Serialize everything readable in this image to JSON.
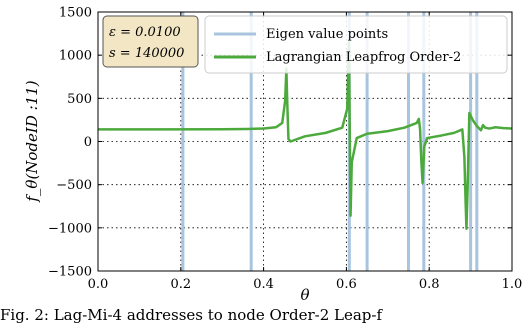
{
  "chart_data": {
    "type": "line",
    "ylabel": "f_θ(NodeID :11)",
    "xlabel": "θ",
    "xlim": [
      0.0,
      1.0
    ],
    "ylim": [
      -1500,
      1500
    ],
    "xticks": [
      0.0,
      0.2,
      0.4,
      0.6,
      0.8,
      1.0
    ],
    "xtick_labels": [
      "0.0",
      "0.2",
      "0.4",
      "0.6",
      "0.8",
      "1.0"
    ],
    "yticks": [
      -1500,
      -1000,
      -500,
      0,
      500,
      1000,
      1500
    ],
    "ytick_labels": [
      "−1500",
      "−1000",
      "−500",
      "0",
      "500",
      "1000",
      "1500"
    ],
    "grid": true,
    "legend_position": "top-right",
    "series": [
      {
        "name": "Eigen value points",
        "kind": "vertical-lines",
        "color": "#a8c4de",
        "x": [
          0.205,
          0.37,
          0.607,
          0.65,
          0.75,
          0.787,
          0.9,
          0.915
        ]
      },
      {
        "name": "Lagrangian Leapfrog Order-2",
        "kind": "line",
        "color": "#4caa3c",
        "points": [
          [
            0.0,
            140
          ],
          [
            0.15,
            140
          ],
          [
            0.3,
            142
          ],
          [
            0.36,
            145
          ],
          [
            0.4,
            150
          ],
          [
            0.43,
            165
          ],
          [
            0.445,
            215
          ],
          [
            0.452,
            470
          ],
          [
            0.455,
            845
          ],
          [
            0.457,
            470
          ],
          [
            0.46,
            30
          ],
          [
            0.465,
            0
          ],
          [
            0.5,
            60
          ],
          [
            0.55,
            100
          ],
          [
            0.59,
            160
          ],
          [
            0.602,
            380
          ],
          [
            0.606,
            1140
          ],
          [
            0.608,
            200
          ],
          [
            0.61,
            -860
          ],
          [
            0.613,
            -240
          ],
          [
            0.625,
            40
          ],
          [
            0.65,
            90
          ],
          [
            0.7,
            120
          ],
          [
            0.74,
            160
          ],
          [
            0.77,
            215
          ],
          [
            0.775,
            262
          ],
          [
            0.778,
            140
          ],
          [
            0.781,
            -230
          ],
          [
            0.784,
            -480
          ],
          [
            0.788,
            -60
          ],
          [
            0.795,
            40
          ],
          [
            0.83,
            70
          ],
          [
            0.86,
            100
          ],
          [
            0.88,
            140
          ],
          [
            0.885,
            -180
          ],
          [
            0.888,
            -710
          ],
          [
            0.89,
            -1010
          ],
          [
            0.893,
            -500
          ],
          [
            0.897,
            330
          ],
          [
            0.905,
            250
          ],
          [
            0.915,
            180
          ],
          [
            0.925,
            130
          ],
          [
            0.93,
            190
          ],
          [
            0.935,
            160
          ],
          [
            0.945,
            150
          ],
          [
            0.96,
            165
          ],
          [
            0.98,
            155
          ],
          [
            1.0,
            150
          ]
        ]
      }
    ],
    "annotation": {
      "lines": [
        "ε = 0.0100",
        "s = 140000"
      ]
    }
  },
  "caption": "Fig. 2: Lag-Mi-4 addresses to node Order-2 Leap-f"
}
